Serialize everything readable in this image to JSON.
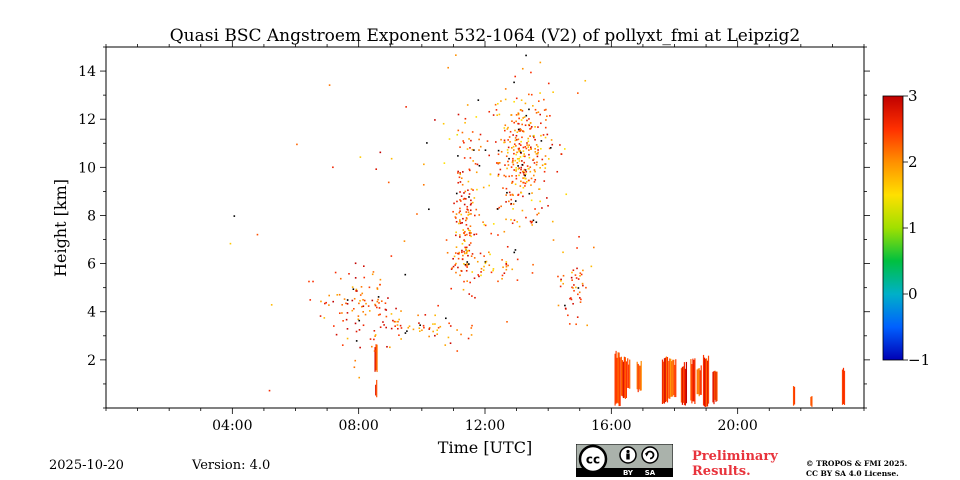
{
  "chart_data": {
    "type": "heatmap",
    "title": "Quasi BSC Angstroem Exponent 532-1064 (V2) of pollyxt_fmi at Leipzig2",
    "xlabel": "Time [UTC]",
    "ylabel": "Height [km]",
    "xlim_hours": [
      0,
      24
    ],
    "ylim_km": [
      0,
      15
    ],
    "x_ticks": [
      {
        "value": 4,
        "label": "04:00"
      },
      {
        "value": 8,
        "label": "08:00"
      },
      {
        "value": 12,
        "label": "12:00"
      },
      {
        "value": 16,
        "label": "16:00"
      },
      {
        "value": 20,
        "label": "20:00"
      }
    ],
    "y_ticks": [
      {
        "value": 2,
        "label": "2"
      },
      {
        "value": 4,
        "label": "4"
      },
      {
        "value": 6,
        "label": "6"
      },
      {
        "value": 8,
        "label": "8"
      },
      {
        "value": 10,
        "label": "10"
      },
      {
        "value": 12,
        "label": "12"
      },
      {
        "value": 14,
        "label": "14"
      }
    ],
    "colorbar": {
      "min": -1,
      "max": 3,
      "ticks": [
        {
          "value": 3,
          "label": "3"
        },
        {
          "value": 2,
          "label": "2"
        },
        {
          "value": 1,
          "label": "1"
        },
        {
          "value": 0,
          "label": "0"
        },
        {
          "value": -1,
          "label": "−1"
        }
      ],
      "colors": [
        "#0000b4",
        "#0060ff",
        "#00b0c8",
        "#00c040",
        "#a0e000",
        "#ffe000",
        "#ff9000",
        "#ff3000",
        "#c00000"
      ]
    },
    "grid": false,
    "columns": [
      {
        "t0": 16.1,
        "t1": 16.3,
        "h0": 0.1,
        "h1": 2.2,
        "value": 2.3
      },
      {
        "t0": 16.3,
        "t1": 16.5,
        "h0": 0.4,
        "h1": 2.0,
        "value": 2.5
      },
      {
        "t0": 16.5,
        "t1": 16.6,
        "h0": 0.8,
        "h1": 1.9,
        "value": 2.2
      },
      {
        "t0": 16.8,
        "t1": 16.95,
        "h0": 0.7,
        "h1": 1.8,
        "value": 2.4
      },
      {
        "t0": 17.6,
        "t1": 17.8,
        "h0": 0.2,
        "h1": 2.1,
        "value": 2.5
      },
      {
        "t0": 17.8,
        "t1": 18.05,
        "h0": 0.4,
        "h1": 1.9,
        "value": 2.3
      },
      {
        "t0": 18.2,
        "t1": 18.4,
        "h0": 0.1,
        "h1": 1.8,
        "value": 2.6
      },
      {
        "t0": 18.5,
        "t1": 18.65,
        "h0": 0.2,
        "h1": 2.0,
        "value": 2.4
      },
      {
        "t0": 18.7,
        "t1": 18.85,
        "h0": 0.5,
        "h1": 1.7,
        "value": 2.2
      },
      {
        "t0": 18.9,
        "t1": 19.1,
        "h0": 0.1,
        "h1": 2.1,
        "value": 2.5
      },
      {
        "t0": 19.2,
        "t1": 19.35,
        "h0": 0.2,
        "h1": 1.6,
        "value": 2.4
      },
      {
        "t0": 21.75,
        "t1": 21.82,
        "h0": 0.1,
        "h1": 0.8,
        "value": 2.3
      },
      {
        "t0": 22.3,
        "t1": 22.35,
        "h0": 0.1,
        "h1": 0.4,
        "value": 2.6
      },
      {
        "t0": 23.3,
        "t1": 23.38,
        "h0": 0.1,
        "h1": 1.6,
        "value": 2.5
      },
      {
        "t0": 8.5,
        "t1": 8.6,
        "h0": 1.5,
        "h1": 2.5,
        "value": 2.5
      },
      {
        "t0": 8.52,
        "t1": 8.58,
        "h0": 0.5,
        "h1": 1.0,
        "value": 2.4
      }
    ],
    "clusters": [
      {
        "t": 13.2,
        "h": 10.5,
        "st": 0.45,
        "sh": 1.3,
        "n": 320,
        "value": 2.2
      },
      {
        "t": 11.3,
        "h": 7.8,
        "st": 0.18,
        "sh": 1.6,
        "n": 140,
        "value": 2.3
      },
      {
        "t": 8.1,
        "h": 4.2,
        "st": 0.7,
        "sh": 0.9,
        "n": 110,
        "value": 2.4
      },
      {
        "t": 9.8,
        "h": 3.4,
        "st": 0.8,
        "sh": 0.3,
        "n": 45,
        "value": 2.3
      },
      {
        "t": 14.8,
        "h": 5.0,
        "st": 0.25,
        "sh": 0.9,
        "n": 50,
        "value": 2.4
      },
      {
        "t": 12.0,
        "h": 5.9,
        "st": 0.6,
        "sh": 0.3,
        "n": 40,
        "value": 2.2
      },
      {
        "t": 11.9,
        "h": 9.0,
        "st": 0.8,
        "sh": 2.5,
        "n": 70,
        "value": 2.1
      },
      {
        "t": 10.0,
        "h": 9.0,
        "st": 2.5,
        "sh": 3.5,
        "n": 40,
        "value": 2.3
      }
    ]
  },
  "footer": {
    "date": "2025-10-20",
    "version": "Version: 4.0",
    "preliminary_line1": "Preliminary",
    "preliminary_line2": "Results.",
    "copyright_line1": "© TROPOS & FMI 2025.",
    "copyright_line2": "CC BY SA 4.0 License.",
    "license_badge": {
      "by": "BY",
      "sa": "SA"
    }
  }
}
